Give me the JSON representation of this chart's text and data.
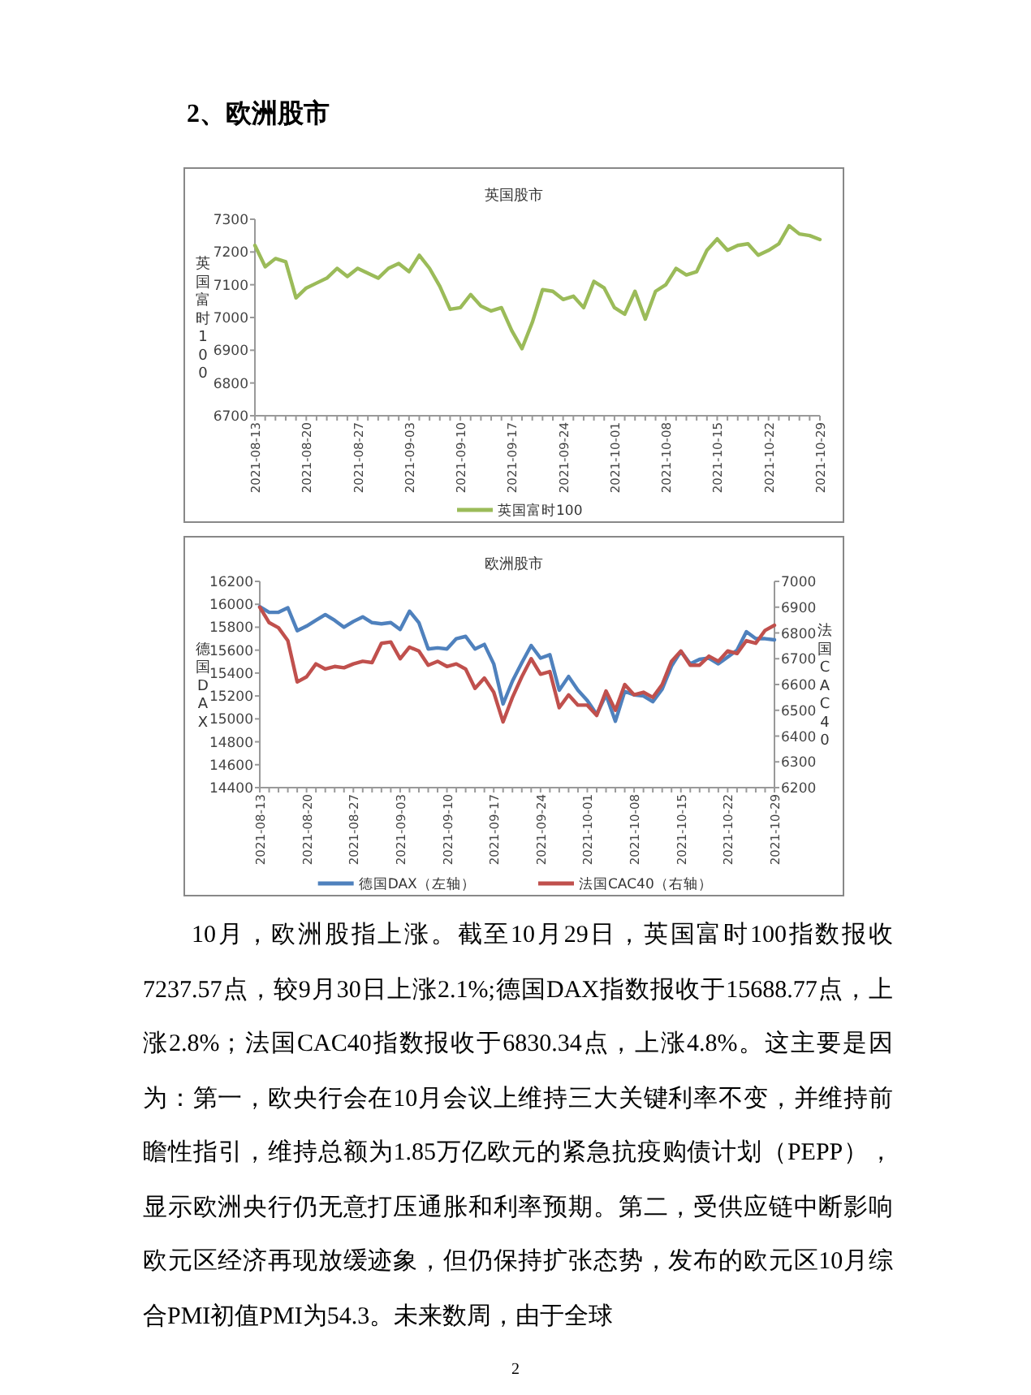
{
  "chart_data": [
    {
      "type": "other",
      "title": "2、欧洲股市"
    },
    {
      "type": "line",
      "title": "英国股市",
      "ylabel": "英国富时100",
      "legend": "bottom",
      "categories": [
        "2021-08-13",
        null,
        null,
        null,
        null,
        "2021-08-20",
        null,
        null,
        null,
        null,
        "2021-08-27",
        null,
        null,
        null,
        null,
        "2021-09-03",
        null,
        null,
        null,
        null,
        "2021-09-10",
        null,
        null,
        null,
        null,
        "2021-09-17",
        null,
        null,
        null,
        null,
        "2021-09-24",
        null,
        null,
        null,
        null,
        "2021-10-01",
        null,
        null,
        null,
        null,
        "2021-10-08",
        null,
        null,
        null,
        null,
        "2021-10-15",
        null,
        null,
        null,
        null,
        "2021-10-22",
        null,
        null,
        null,
        null,
        "2021-10-29"
      ],
      "ylim": [
        6700,
        7300
      ],
      "yticks": [
        6700,
        6800,
        6900,
        7000,
        7100,
        7200,
        7300
      ],
      "series": [
        {
          "name": "英国富时100",
          "color": "#9bbb59",
          "values": [
            7220,
            7155,
            7180,
            7170,
            7060,
            7090,
            7105,
            7120,
            7150,
            7125,
            7150,
            7135,
            7120,
            7150,
            7165,
            7140,
            7190,
            7150,
            7095,
            7025,
            7030,
            7070,
            7035,
            7020,
            7030,
            6960,
            6905,
            6985,
            7085,
            7080,
            7055,
            7065,
            7030,
            7110,
            7090,
            7030,
            7010,
            7080,
            6995,
            7080,
            7100,
            7150,
            7130,
            7140,
            7205,
            7240,
            7205,
            7220,
            7225,
            7190,
            7205,
            7225,
            7280,
            7255,
            7250,
            7238
          ]
        }
      ]
    },
    {
      "type": "line",
      "title": "欧洲股市",
      "ylabel": "德国DAX",
      "y2label": "法国CAC40",
      "legend": "bottom",
      "categories": [
        "2021-08-13",
        null,
        null,
        null,
        null,
        "2021-08-20",
        null,
        null,
        null,
        null,
        "2021-08-27",
        null,
        null,
        null,
        null,
        "2021-09-03",
        null,
        null,
        null,
        null,
        "2021-09-10",
        null,
        null,
        null,
        null,
        "2021-09-17",
        null,
        null,
        null,
        null,
        "2021-09-24",
        null,
        null,
        null,
        null,
        "2021-10-01",
        null,
        null,
        null,
        null,
        "2021-10-08",
        null,
        null,
        null,
        null,
        "2021-10-15",
        null,
        null,
        null,
        null,
        "2021-10-22",
        null,
        null,
        null,
        null,
        "2021-10-29"
      ],
      "ylim": [
        14400,
        16200
      ],
      "yticks": [
        14400,
        14600,
        14800,
        15000,
        15200,
        15400,
        15600,
        15800,
        16000,
        16200
      ],
      "y2lim": [
        6200,
        7000
      ],
      "y2ticks": [
        6200,
        6300,
        6400,
        6500,
        6600,
        6700,
        6800,
        6900,
        7000
      ],
      "series": [
        {
          "name": "德国DAX（左轴）",
          "color": "#4f81bd",
          "values": [
            15980,
            15930,
            15930,
            15970,
            15770,
            15810,
            15860,
            15910,
            15860,
            15800,
            15850,
            15890,
            15840,
            15830,
            15840,
            15780,
            15940,
            15840,
            15610,
            15620,
            15610,
            15700,
            15720,
            15610,
            15650,
            15480,
            15130,
            15330,
            15490,
            15640,
            15530,
            15560,
            15250,
            15370,
            15250,
            15160,
            15040,
            15210,
            14980,
            15240,
            15210,
            15200,
            15150,
            15260,
            15460,
            15590,
            15480,
            15520,
            15530,
            15480,
            15540,
            15600,
            15760,
            15700,
            15700,
            15690
          ]
        },
        {
          "name": "法国CAC40（右轴）",
          "color": "#c0504d",
          "axis": "y2",
          "values": [
            6900,
            6840,
            6820,
            6770,
            6610,
            6630,
            6680,
            6660,
            6670,
            6665,
            6680,
            6690,
            6685,
            6760,
            6765,
            6700,
            6745,
            6730,
            6675,
            6690,
            6670,
            6680,
            6660,
            6585,
            6625,
            6570,
            6455,
            6550,
            6630,
            6700,
            6640,
            6650,
            6510,
            6560,
            6520,
            6520,
            6480,
            6575,
            6500,
            6600,
            6560,
            6570,
            6550,
            6600,
            6690,
            6730,
            6675,
            6675,
            6710,
            6690,
            6730,
            6720,
            6770,
            6760,
            6810,
            6830
          ]
        }
      ]
    },
    {
      "type": "other",
      "annotations": [
        "10月，欧洲股指上涨。截至10月29日，英国富时100指数报收7237.57点，较9月30日上涨2.1%;德国DAX指数报收于15688.77点，上涨2.8%；法国CAC40指数报收于6830.34点，上涨4.8%。这主要是因为：第一，欧央行会在10月会议上维持三大关键利率不变，并维持前瞻性指引，维持总额为1.85万亿欧元的紧急抗疫购债计划（PEPP），显示欧洲央行仍无意打压通胀和利率预期。第二，受供应链中断影响欧元区经济再现放缓迹象，但仍保持扩张态势，发布的欧元区10月综合PMI初值PMI为54.3。未来数周，由于全球",
        "2"
      ]
    }
  ]
}
